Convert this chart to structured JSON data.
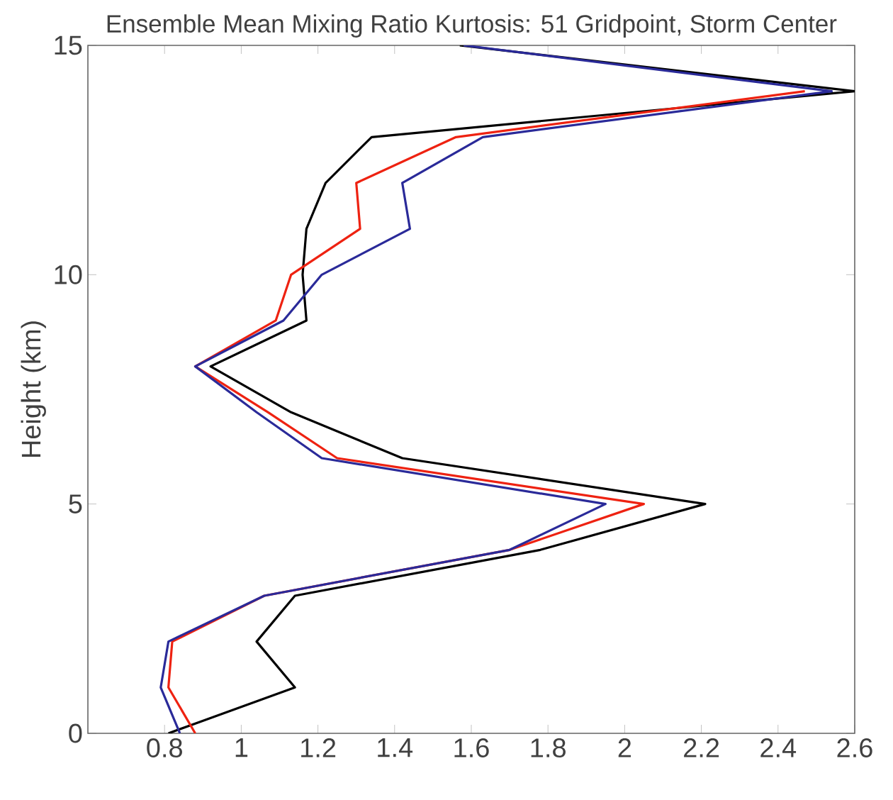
{
  "chart_data": {
    "type": "line",
    "title": "Ensemble Mean Mixing Ratio Kurtosis: 51 Gridpoint, Storm Center",
    "ylabel": "Height (km)",
    "orientation": "horizontal",
    "x": [
      0,
      1,
      2,
      3,
      4,
      5,
      6,
      7,
      8,
      9,
      10,
      11,
      12,
      13,
      14,
      15
    ],
    "series": [
      {
        "color": "#000000",
        "values": [
          0.81,
          1.14,
          1.04,
          1.14,
          1.78,
          2.21,
          1.42,
          1.13,
          0.92,
          1.17,
          1.16,
          1.17,
          1.22,
          1.34,
          2.6,
          1.57
        ]
      },
      {
        "color": "#ee2211",
        "values": [
          0.88,
          0.81,
          0.82,
          1.06,
          1.7,
          2.05,
          1.25,
          1.07,
          0.88,
          1.09,
          1.13,
          1.31,
          1.3,
          1.56,
          2.47,
          null
        ]
      },
      {
        "color": "#2a2a99",
        "values": [
          0.84,
          0.79,
          0.81,
          1.06,
          1.7,
          1.95,
          1.21,
          1.04,
          0.88,
          1.11,
          1.21,
          1.44,
          1.42,
          1.63,
          2.54,
          1.58
        ]
      }
    ],
    "xlim": [
      0.6,
      2.6
    ],
    "xticks": [
      0.8,
      1,
      1.2,
      1.4,
      1.6,
      1.8,
      2,
      2.2,
      2.4,
      2.6
    ],
    "ylim": [
      0,
      15
    ],
    "yticks": [
      0,
      5,
      10,
      15
    ],
    "grid": false,
    "marker": "none",
    "line_style": "solid"
  }
}
